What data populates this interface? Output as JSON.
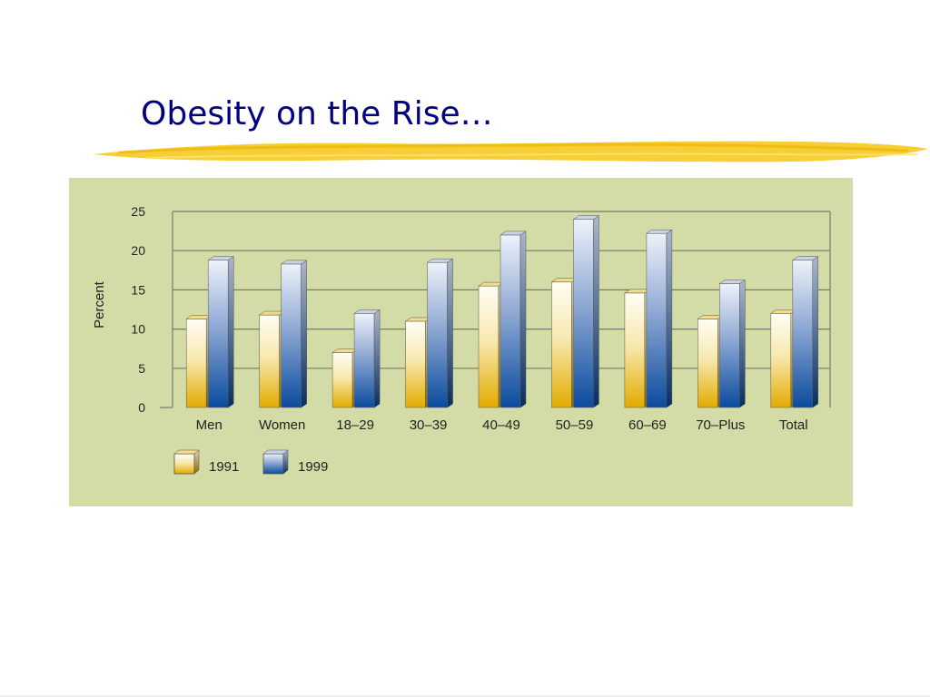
{
  "slide": {
    "title": "Obesity on the Rise…"
  },
  "colors": {
    "title": "#000080",
    "highlight_stroke": "#f5c518",
    "panel_background": "#d3dca6",
    "grid_line": "#7a7a6a",
    "series_1991_light": "#fdf8e6",
    "series_1991_dark": "#e3ad00",
    "series_1999_light": "#e8eef8",
    "series_1999_dark": "#0b4fa3"
  },
  "chart_data": {
    "type": "bar",
    "title": "",
    "xlabel": "",
    "ylabel": "Percent",
    "ylim": [
      0,
      25
    ],
    "yticks": [
      0,
      5,
      10,
      15,
      20,
      25
    ],
    "grid": true,
    "legend_position": "bottom-left",
    "categories": [
      "Men",
      "Women",
      "18–29",
      "30–39",
      "40–49",
      "50–59",
      "60–69",
      "70–Plus",
      "Total"
    ],
    "series": [
      {
        "name": "1991",
        "values": [
          11.3,
          11.8,
          7.0,
          11.0,
          15.5,
          16.0,
          14.6,
          11.3,
          12.0
        ]
      },
      {
        "name": "1999",
        "values": [
          18.8,
          18.3,
          12.0,
          18.5,
          22.0,
          24.0,
          22.2,
          15.8,
          18.8
        ]
      }
    ]
  }
}
